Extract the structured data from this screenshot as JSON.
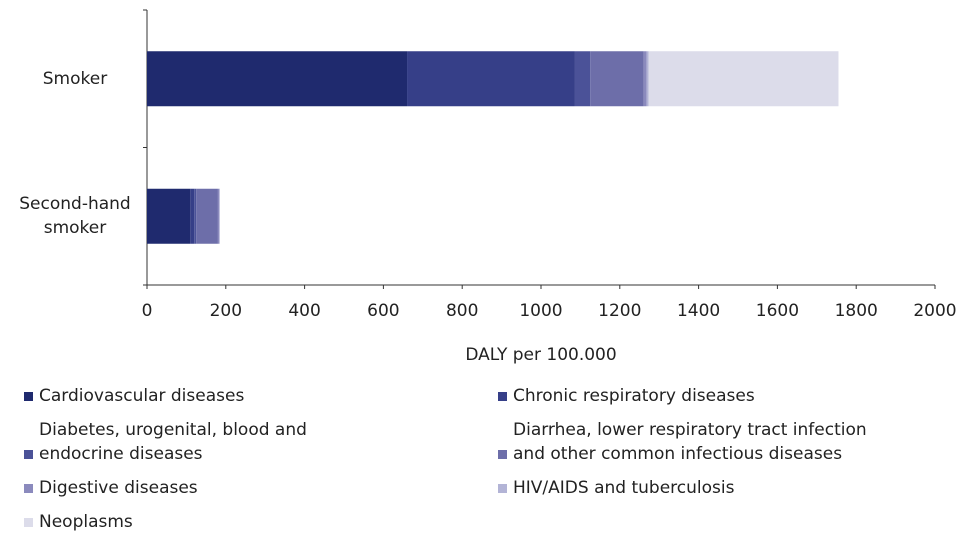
{
  "chart_data": {
    "type": "stacked-bar-horizontal",
    "x_label": "DALY per 100.000",
    "categories": [
      "Smoker",
      "Second-hand smoker"
    ],
    "series": [
      {
        "name": "Cardiovascular diseases",
        "color": "#1f2a6e",
        "values": [
          660,
          110
        ]
      },
      {
        "name": "Chronic respiratory diseases",
        "color": "#363f88",
        "values": [
          425,
          10
        ]
      },
      {
        "name": "Diabetes, urogenital, blood and endocrine diseases",
        "color": "#4b5298",
        "values": [
          40,
          5
        ]
      },
      {
        "name": "Diarrhea, lower respiratory tract infection and other common infectious diseases",
        "color": "#6d6ea9",
        "values": [
          135,
          55
        ]
      },
      {
        "name": "Digestive diseases",
        "color": "#8b8abd",
        "values": [
          8,
          3
        ]
      },
      {
        "name": "HIV/AIDS and tuberculosis",
        "color": "#b3b4d6",
        "values": [
          5,
          2
        ]
      },
      {
        "name": "Neoplasms",
        "color": "#dcdcea",
        "values": [
          482,
          0
        ]
      }
    ],
    "xlim": [
      0,
      2000
    ],
    "xticks": [
      0,
      200,
      400,
      600,
      800,
      1000,
      1200,
      1400,
      1600,
      1800,
      2000
    ]
  }
}
